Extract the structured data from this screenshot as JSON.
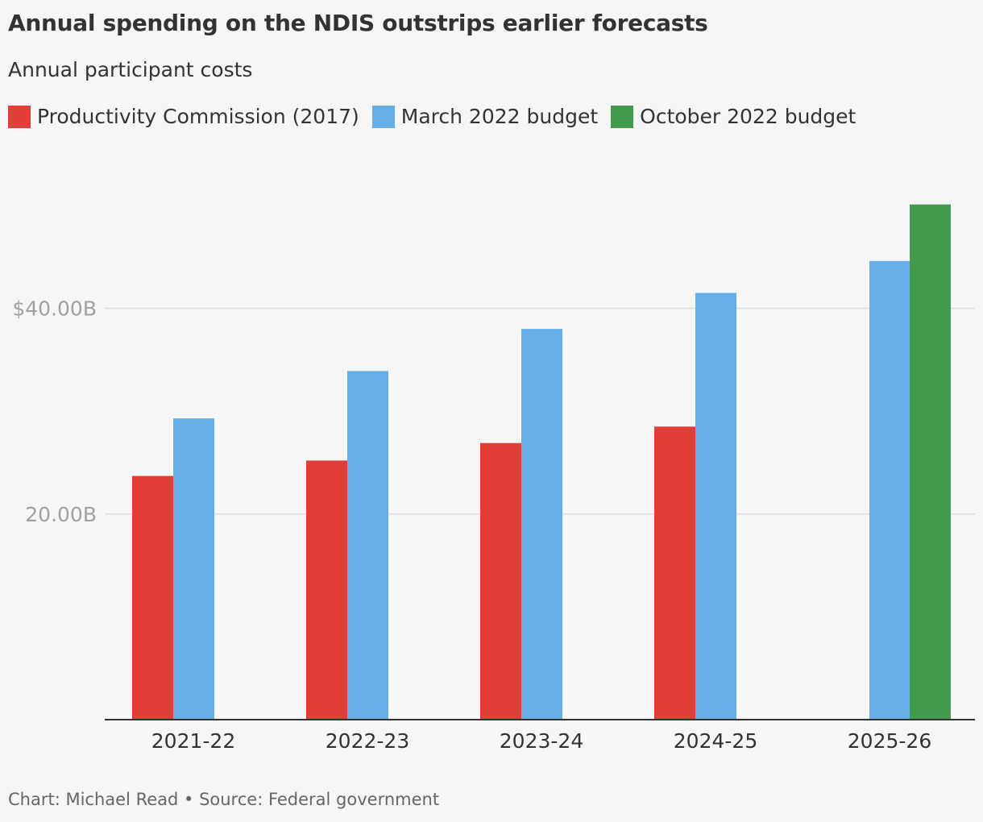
{
  "title": "Annual spending on the NDIS outstrips earlier forecasts",
  "subtitle": "Annual participant costs",
  "footer": "Chart: Michael Read • Source: Federal government",
  "chart_data": {
    "type": "bar",
    "categories": [
      "2021-22",
      "2022-23",
      "2023-24",
      "2024-25",
      "2025-26"
    ],
    "series": [
      {
        "name": "Productivity Commission (2017)",
        "color": "#e03e36",
        "values": [
          23.7,
          25.2,
          26.9,
          28.5,
          null
        ]
      },
      {
        "name": "March 2022 budget",
        "color": "#67aee6",
        "values": [
          29.3,
          33.9,
          38.0,
          41.5,
          44.6
        ]
      },
      {
        "name": "October 2022 budget",
        "color": "#429a4d",
        "values": [
          null,
          null,
          null,
          null,
          50.1
        ]
      }
    ],
    "yticks": [
      {
        "value": 20,
        "label": "20.00B"
      },
      {
        "value": 40,
        "label": "$40.00B"
      }
    ],
    "ylim": [
      0,
      50.1
    ],
    "yunit": "billion AUD",
    "grid": true,
    "legend": "top-left"
  }
}
